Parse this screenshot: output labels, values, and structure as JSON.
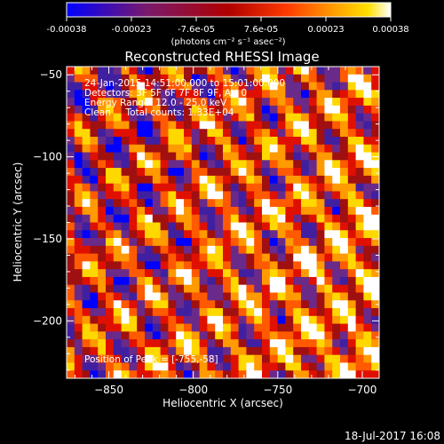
{
  "chart_data": {
    "type": "heatmap",
    "title": "Reconstructed RHESSI Image",
    "xlabel": "Heliocentric X (arcsec)",
    "ylabel": "Heliocentric Y (arcsec)",
    "xlim": [
      -875,
      -690
    ],
    "ylim": [
      -235,
      -45
    ],
    "xticks": [
      -850,
      -800,
      -750,
      -700
    ],
    "yticks": [
      -50,
      -100,
      -150,
      -200
    ],
    "colorbar": {
      "min": -0.00038,
      "max": 0.00038,
      "tick_labels": [
        "-0.00038",
        "-0.00023",
        "-7.6e-05",
        "7.6e-05",
        "0.00023",
        "0.00038"
      ],
      "unit_label": "(photons cm⁻² s⁻¹ asec⁻²)"
    },
    "annotations": {
      "time_range": "24-Jan-2015 14:51:00.000 to 15:01:00.000",
      "detectors": "Detectors: 3F 5F 6F 7F 8F 9F, Att 0",
      "energy_range": "Energy Range: 12.0 - 25.0 keV",
      "method_counts": "Clean     Total counts: 1.33E+04",
      "peak_position": "Position of Peak = [-755,-58]"
    },
    "peak": {
      "x": -755,
      "y": -58
    },
    "grid_size": [
      40,
      40
    ],
    "palette": [
      "#0000ff",
      "#4020a0",
      "#6a2a8a",
      "#a01010",
      "#e01000",
      "#ff5a00",
      "#ff9a00",
      "#ffd800",
      "#ffffff"
    ]
  },
  "footer": {
    "date_stamp": "18-Jul-2017 16:08"
  }
}
